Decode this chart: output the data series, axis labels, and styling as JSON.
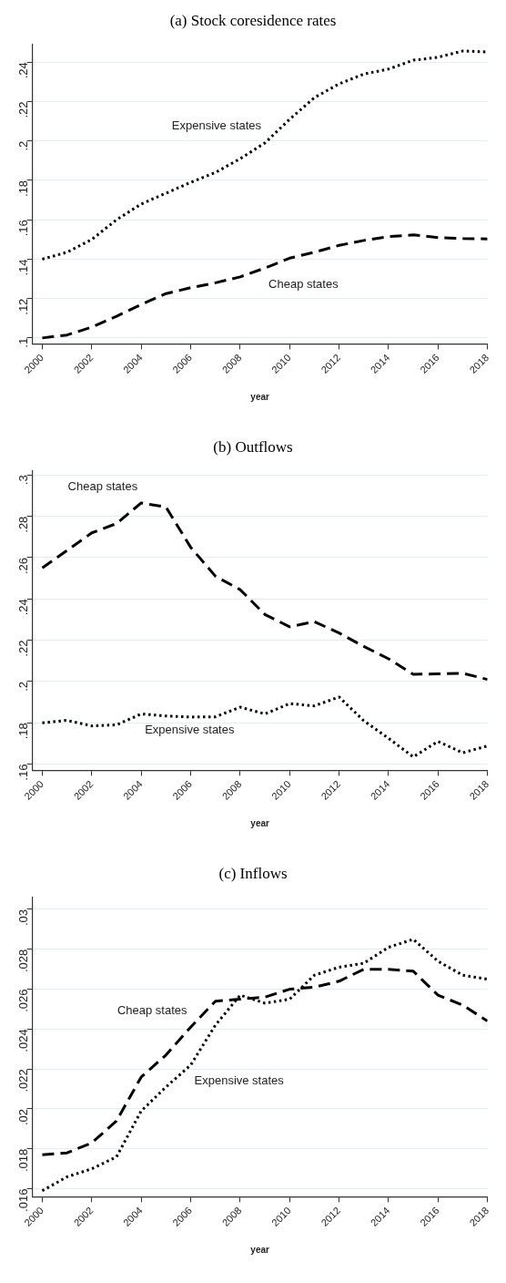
{
  "chart_data": [
    {
      "type": "line",
      "title": "(a) Stock coresidence rates",
      "xlabel": "year",
      "x": [
        2000,
        2001,
        2002,
        2003,
        2004,
        2005,
        2006,
        2007,
        2008,
        2009,
        2010,
        2011,
        2012,
        2013,
        2014,
        2015,
        2016,
        2017,
        2018
      ],
      "series": [
        {
          "name": "Expensive states",
          "color": "#000000",
          "line_style": "dotted",
          "values": [
            0.14,
            0.1435,
            0.15,
            0.16,
            0.168,
            0.1735,
            0.179,
            0.184,
            0.191,
            0.199,
            0.211,
            0.222,
            0.229,
            0.234,
            0.2365,
            0.241,
            0.2425,
            0.2457,
            0.2452
          ]
        },
        {
          "name": "Cheap states",
          "color": "#000000",
          "line_style": "dashed",
          "values": [
            0.1,
            0.1015,
            0.1055,
            0.111,
            0.117,
            0.1225,
            0.1255,
            0.128,
            0.131,
            0.1355,
            0.1405,
            0.1435,
            0.147,
            0.1495,
            0.1515,
            0.1523,
            0.151,
            0.1505,
            0.1503
          ]
        }
      ],
      "xlim": [
        1999.6,
        2018
      ],
      "xticks": [
        2000,
        2002,
        2004,
        2006,
        2008,
        2010,
        2012,
        2014,
        2016,
        2018
      ],
      "ylim": [
        0.097,
        0.249
      ],
      "yticks": [
        {
          "value": 0.1,
          "label": ".1"
        },
        {
          "value": 0.12,
          "label": ".12"
        },
        {
          "value": 0.14,
          "label": ".14"
        },
        {
          "value": 0.16,
          "label": ".16"
        },
        {
          "value": 0.18,
          "label": ".18"
        },
        {
          "value": 0.2,
          "label": ".2"
        },
        {
          "value": 0.22,
          "label": ".22"
        },
        {
          "value": 0.24,
          "label": ".24"
        }
      ],
      "grid": "y"
    },
    {
      "type": "line",
      "title": "(b) Outflows",
      "xlabel": "year",
      "x": [
        2000,
        2001,
        2002,
        2003,
        2004,
        2005,
        2006,
        2007,
        2008,
        2009,
        2010,
        2011,
        2012,
        2013,
        2014,
        2015,
        2016,
        2017,
        2018
      ],
      "series": [
        {
          "name": "Cheap states",
          "color": "#000000",
          "line_style": "dashed",
          "values": [
            0.255,
            0.2635,
            0.272,
            0.2765,
            0.2865,
            0.2845,
            0.265,
            0.251,
            0.2445,
            0.2325,
            0.2265,
            0.229,
            0.2235,
            0.217,
            0.211,
            0.2035,
            0.2037,
            0.204,
            0.201
          ]
        },
        {
          "name": "Expensive states",
          "color": "#000000",
          "line_style": "dotted",
          "values": [
            0.18,
            0.1812,
            0.1785,
            0.179,
            0.1843,
            0.1833,
            0.1828,
            0.1829,
            0.1876,
            0.1843,
            0.1893,
            0.1882,
            0.1925,
            0.181,
            0.1725,
            0.1635,
            0.171,
            0.1655,
            0.1688
          ]
        }
      ],
      "xlim": [
        1999.6,
        2018
      ],
      "xticks": [
        2000,
        2002,
        2004,
        2006,
        2008,
        2010,
        2012,
        2014,
        2016,
        2018
      ],
      "ylim": [
        0.157,
        0.302
      ],
      "yticks": [
        {
          "value": 0.16,
          "label": ".16"
        },
        {
          "value": 0.18,
          "label": ".18"
        },
        {
          "value": 0.2,
          "label": ".2"
        },
        {
          "value": 0.22,
          "label": ".22"
        },
        {
          "value": 0.24,
          "label": ".24"
        },
        {
          "value": 0.26,
          "label": ".26"
        },
        {
          "value": 0.28,
          "label": ".28"
        },
        {
          "value": 0.3,
          "label": ".3"
        }
      ],
      "grid": "y"
    },
    {
      "type": "line",
      "title": "(c) Inflows",
      "xlabel": "year",
      "x": [
        2000,
        2001,
        2002,
        2003,
        2004,
        2005,
        2006,
        2007,
        2008,
        2009,
        2010,
        2011,
        2012,
        2013,
        2014,
        2015,
        2016,
        2017,
        2018
      ],
      "series": [
        {
          "name": "Cheap states",
          "color": "#000000",
          "line_style": "dashed",
          "values": [
            0.0177,
            0.0178,
            0.0183,
            0.0194,
            0.0216,
            0.0227,
            0.0241,
            0.0254,
            0.0255,
            0.0256,
            0.026,
            0.0261,
            0.0264,
            0.027,
            0.027,
            0.0269,
            0.0257,
            0.0252,
            0.0244
          ]
        },
        {
          "name": "Expensive states",
          "color": "#000000",
          "line_style": "dotted",
          "values": [
            0.0159,
            0.0166,
            0.017,
            0.0176,
            0.0199,
            0.0211,
            0.0222,
            0.0242,
            0.0257,
            0.0253,
            0.0255,
            0.0267,
            0.0271,
            0.0273,
            0.0281,
            0.0285,
            0.0274,
            0.0267,
            0.0265
          ]
        }
      ],
      "xlim": [
        1999.6,
        2018
      ],
      "xticks": [
        2000,
        2002,
        2004,
        2006,
        2008,
        2010,
        2012,
        2014,
        2016,
        2018
      ],
      "ylim": [
        0.0156,
        0.0306
      ],
      "yticks": [
        {
          "value": 0.016,
          "label": ".016"
        },
        {
          "value": 0.018,
          "label": ".018"
        },
        {
          "value": 0.02,
          "label": ".02"
        },
        {
          "value": 0.022,
          "label": ".022"
        },
        {
          "value": 0.024,
          "label": ".024"
        },
        {
          "value": 0.026,
          "label": ".026"
        },
        {
          "value": 0.028,
          "label": ".028"
        },
        {
          "value": 0.03,
          "label": ".03"
        }
      ],
      "grid": "y"
    }
  ]
}
